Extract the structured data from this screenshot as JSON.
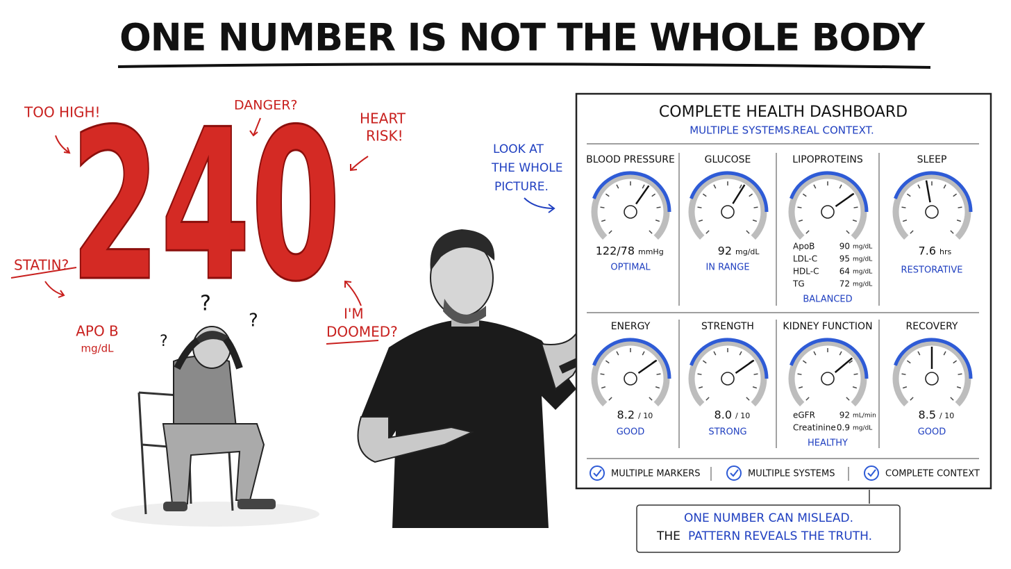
{
  "title": "ONE NUMBER IS NOT THE WHOLE BODY",
  "big_number": {
    "value": 240,
    "label": "APO B",
    "unit": "mg/dL"
  },
  "annotations": {
    "too_high": "TOO HIGH!",
    "danger": "DANGER?",
    "heart_risk": [
      "HEART",
      "RISK!"
    ],
    "statin": "STATIN?",
    "doomed": [
      "I'M",
      "DOOMED?"
    ]
  },
  "question_marks": [
    "?",
    "?",
    "?"
  ],
  "side_note": [
    "LOOK AT",
    "THE WHOLE",
    "PICTURE."
  ],
  "dashboard": {
    "title": "COMPLETE HEALTH DASHBOARD",
    "subtitle": [
      "MULTIPLE SYSTEMS.",
      "REAL CONTEXT."
    ],
    "panels": [
      {
        "name": "BLOOD PRESSURE",
        "value": "122/78",
        "unit": "mmHg",
        "status": "OPTIMAL"
      },
      {
        "name": "GLUCOSE",
        "value": 92,
        "unit": "mg/dL",
        "status": "IN RANGE"
      },
      {
        "name": "LIPOPROTEINS",
        "rows": [
          {
            "label": "ApoB",
            "value": 90,
            "unit": "mg/dL"
          },
          {
            "label": "LDL-C",
            "value": 95,
            "unit": "mg/dL"
          },
          {
            "label": "HDL-C",
            "value": 64,
            "unit": "mg/dL"
          },
          {
            "label": "TG",
            "value": 72,
            "unit": "mg/dL"
          }
        ],
        "status": "BALANCED"
      },
      {
        "name": "SLEEP",
        "value": 7.6,
        "unit": "hrs",
        "status": "RESTORATIVE"
      },
      {
        "name": "ENERGY",
        "value": 8.2,
        "unit": "/ 10",
        "status": "GOOD"
      },
      {
        "name": "STRENGTH",
        "value": "8.0",
        "unit": "/ 10",
        "status": "STRONG"
      },
      {
        "name": "KIDNEY FUNCTION",
        "rows": [
          {
            "label": "eGFR",
            "value": 92,
            "unit": "mL/min"
          },
          {
            "label": "Creatinine",
            "value": 0.9,
            "unit": "mg/dL"
          }
        ],
        "status": "HEALTHY"
      },
      {
        "name": "RECOVERY",
        "value": 8.5,
        "unit": "/ 10",
        "status": "GOOD"
      }
    ],
    "checks": [
      "MULTIPLE MARKERS",
      "MULTIPLE SYSTEMS",
      "COMPLETE CONTEXT"
    ]
  },
  "callout": {
    "line1": "ONE NUMBER CAN MISLEAD.",
    "line2": [
      "THE",
      "PATTERN REVEALS THE TRUTH."
    ]
  }
}
